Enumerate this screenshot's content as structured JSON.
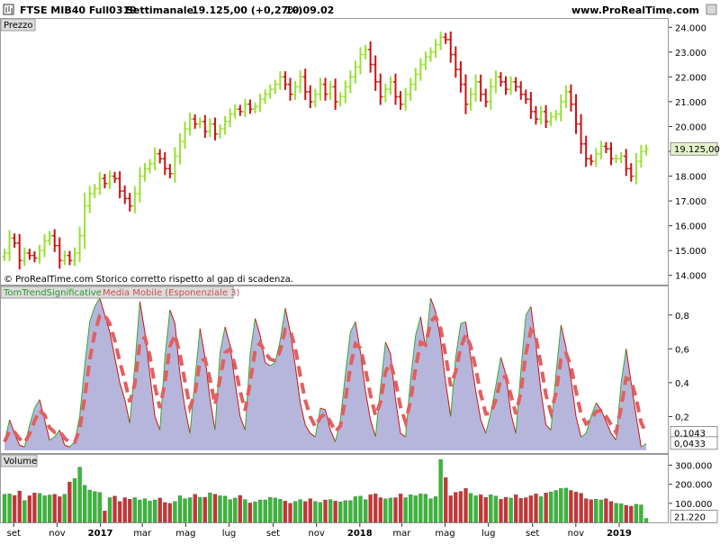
{
  "header": {
    "instrument": "FTSE MIB40 Full0319",
    "period": "Settimanale",
    "price_change": "19.125,00 (+0,27%)",
    "time": "10.09.02",
    "site": "www.ProRealTime.com"
  },
  "panels": {
    "price_label": "Prezzo",
    "indicator_label_1": "TomTrendSignificative",
    "indicator_label_2": "Media Mobile (Esponenziale 3)",
    "volume_label": "Volume"
  },
  "note": "© ProRealTime.com  Storico corretto rispetto al gap di scadenza.",
  "colors": {
    "up": "#99e033",
    "down": "#cc1111",
    "area_fill": "#b6b6dc",
    "area_line_up": "#33aa33",
    "area_line_down": "#cc1111",
    "ema": "#e06060",
    "vol_up": "#33bb33",
    "vol_down": "#cc3333"
  },
  "chart_data": [
    {
      "type": "bar",
      "subtype": "ohlc-weekly",
      "title": "Prezzo",
      "ylim": [
        13700,
        24300
      ],
      "y_ticks": [
        "24.000",
        "23.000",
        "22.000",
        "21.000",
        "20.000",
        "19.000",
        "18.000",
        "17.000",
        "16.000",
        "15.000",
        "14.000"
      ],
      "last_value_label": "19.125,00",
      "x_ticks": [
        {
          "label": "set",
          "date": "2016-09"
        },
        {
          "label": "nov",
          "date": "2016-11"
        },
        {
          "label": "2017",
          "date": "2017-01"
        },
        {
          "label": "mar",
          "date": "2017-03"
        },
        {
          "label": "mag",
          "date": "2017-05"
        },
        {
          "label": "lug",
          "date": "2017-07"
        },
        {
          "label": "set",
          "date": "2017-09"
        },
        {
          "label": "nov",
          "date": "2017-11"
        },
        {
          "label": "2018",
          "date": "2018-01"
        },
        {
          "label": "mar",
          "date": "2018-03"
        },
        {
          "label": "mag",
          "date": "2018-05"
        },
        {
          "label": "lug",
          "date": "2018-07"
        },
        {
          "label": "set",
          "date": "2018-09"
        },
        {
          "label": "nov",
          "date": "2018-11"
        },
        {
          "label": "2019",
          "date": "2019-01"
        }
      ],
      "closes": [
        14900,
        15500,
        15300,
        14600,
        14900,
        14800,
        14700,
        15000,
        15400,
        15600,
        15200,
        14600,
        14800,
        14600,
        14900,
        15600,
        16800,
        17300,
        17500,
        17900,
        17700,
        18000,
        17900,
        17400,
        17100,
        16800,
        17300,
        18000,
        18300,
        18500,
        18900,
        18700,
        18300,
        18100,
        18800,
        19400,
        19900,
        20300,
        20100,
        20200,
        19800,
        20100,
        19700,
        19900,
        20200,
        20500,
        20700,
        20600,
        20900,
        20700,
        20800,
        21100,
        21300,
        21500,
        21700,
        22000,
        21700,
        21300,
        21600,
        22000,
        21400,
        21000,
        21300,
        21700,
        21300,
        21600,
        21000,
        21200,
        21600,
        22000,
        22400,
        22900,
        23100,
        22500,
        21800,
        21200,
        21500,
        21800,
        21200,
        20900,
        21300,
        21700,
        22100,
        22500,
        22800,
        23000,
        23300,
        23600,
        23500,
        22900,
        22300,
        21700,
        20900,
        21300,
        21800,
        21300,
        21000,
        21600,
        22000,
        21800,
        21500,
        21800,
        21600,
        21300,
        21100,
        20600,
        20300,
        20600,
        20200,
        20400,
        20500,
        21000,
        21400,
        20900,
        20100,
        19300,
        18700,
        18600,
        18900,
        19200,
        19100,
        18700,
        18700,
        18800,
        18300,
        18000,
        18600,
        19000,
        19100
      ],
      "first_week": "2016-08-19",
      "last_week": "2019-02-08"
    },
    {
      "type": "area",
      "title": "TomTrendSignificative",
      "ylim": [
        0,
        0.9
      ],
      "y_ticks": [
        "0,8",
        "0,6",
        "0,4",
        "0,2"
      ],
      "series": [
        {
          "name": "TomTrendSignificative",
          "last": "0,0433",
          "values": [
            0.05,
            0.18,
            0.1,
            0.03,
            0.02,
            0.15,
            0.25,
            0.3,
            0.18,
            0.06,
            0.08,
            0.12,
            0.03,
            0.02,
            0.05,
            0.2,
            0.5,
            0.76,
            0.85,
            0.9,
            0.8,
            0.7,
            0.55,
            0.4,
            0.3,
            0.16,
            0.5,
            0.88,
            0.7,
            0.45,
            0.2,
            0.12,
            0.55,
            0.83,
            0.75,
            0.45,
            0.25,
            0.1,
            0.42,
            0.72,
            0.55,
            0.3,
            0.12,
            0.58,
            0.73,
            0.62,
            0.4,
            0.2,
            0.12,
            0.57,
            0.78,
            0.68,
            0.52,
            0.5,
            0.52,
            0.65,
            0.84,
            0.7,
            0.5,
            0.28,
            0.15,
            0.1,
            0.08,
            0.25,
            0.24,
            0.12,
            0.05,
            0.18,
            0.45,
            0.7,
            0.76,
            0.58,
            0.35,
            0.18,
            0.08,
            0.37,
            0.64,
            0.57,
            0.3,
            0.1,
            0.08,
            0.42,
            0.68,
            0.79,
            0.61,
            0.9,
            0.82,
            0.65,
            0.4,
            0.2,
            0.55,
            0.75,
            0.76,
            0.55,
            0.35,
            0.18,
            0.1,
            0.22,
            0.38,
            0.55,
            0.45,
            0.22,
            0.1,
            0.47,
            0.8,
            0.85,
            0.62,
            0.35,
            0.15,
            0.12,
            0.45,
            0.74,
            0.61,
            0.42,
            0.2,
            0.08,
            0.1,
            0.2,
            0.28,
            0.24,
            0.17,
            0.1,
            0.06,
            0.4,
            0.6,
            0.4,
            0.2,
            0.02,
            0.04
          ]
        },
        {
          "name": "Media Mobile (Esponenziale 3)",
          "last": "0,1043"
        }
      ]
    },
    {
      "type": "bar",
      "title": "Volume",
      "ylim": [
        0,
        345000
      ],
      "y_ticks": [
        "300.000",
        "200.000",
        "100.000"
      ],
      "last_value_label": "21.220",
      "values": [
        148000,
        150000,
        142000,
        165000,
        115000,
        140000,
        155000,
        152000,
        140000,
        144000,
        148000,
        135000,
        148000,
        212000,
        230000,
        290000,
        195000,
        170000,
        162000,
        158000,
        60000,
        130000,
        138000,
        110000,
        130000,
        122000,
        130000,
        118000,
        125000,
        112000,
        118000,
        128000,
        105000,
        100000,
        110000,
        140000,
        125000,
        130000,
        148000,
        132000,
        132000,
        155000,
        148000,
        140000,
        138000,
        120000,
        128000,
        142000,
        120000,
        102000,
        108000,
        118000,
        118000,
        132000,
        128000,
        122000,
        112000,
        100000,
        110000,
        120000,
        110000,
        125000,
        110000,
        105000,
        118000,
        120000,
        112000,
        108000,
        115000,
        115000,
        135000,
        138000,
        120000,
        145000,
        150000,
        130000,
        124000,
        128000,
        130000,
        150000,
        130000,
        145000,
        140000,
        150000,
        148000,
        125000,
        135000,
        330000,
        235000,
        140000,
        158000,
        163000,
        178000,
        152000,
        140000,
        145000,
        132000,
        145000,
        138000,
        122000,
        132000,
        128000,
        145000,
        126000,
        130000,
        140000,
        150000,
        135000,
        155000,
        160000,
        168000,
        178000,
        180000,
        168000,
        160000,
        153000,
        125000,
        120000,
        122000,
        118000,
        125000,
        110000,
        100000,
        98000,
        90000,
        85000,
        95000,
        92000,
        21220
      ]
    }
  ]
}
